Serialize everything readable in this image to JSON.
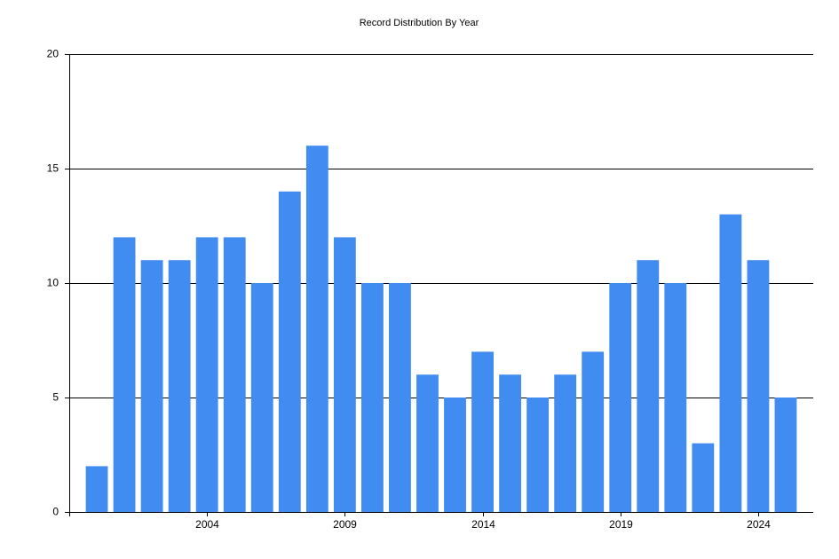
{
  "chart_data": {
    "type": "bar",
    "title": "Record Distribution By Year",
    "x": [
      2000,
      2001,
      2002,
      2003,
      2004,
      2005,
      2006,
      2007,
      2008,
      2009,
      2010,
      2011,
      2012,
      2013,
      2014,
      2015,
      2016,
      2017,
      2018,
      2019,
      2020,
      2021,
      2022,
      2023,
      2024,
      2025
    ],
    "values": [
      2,
      12,
      11,
      11,
      12,
      12,
      10,
      14,
      16,
      12,
      10,
      10,
      6,
      5,
      7,
      6,
      5,
      6,
      7,
      10,
      11,
      10,
      3,
      13,
      11,
      5
    ],
    "color": "#418cf0",
    "xlim": [
      1999,
      2026
    ],
    "xticks": [
      2004,
      2009,
      2014,
      2019,
      2024
    ],
    "ylim": [
      0,
      20
    ],
    "yticks": [
      0,
      5,
      10,
      15,
      20
    ],
    "grid": true
  }
}
